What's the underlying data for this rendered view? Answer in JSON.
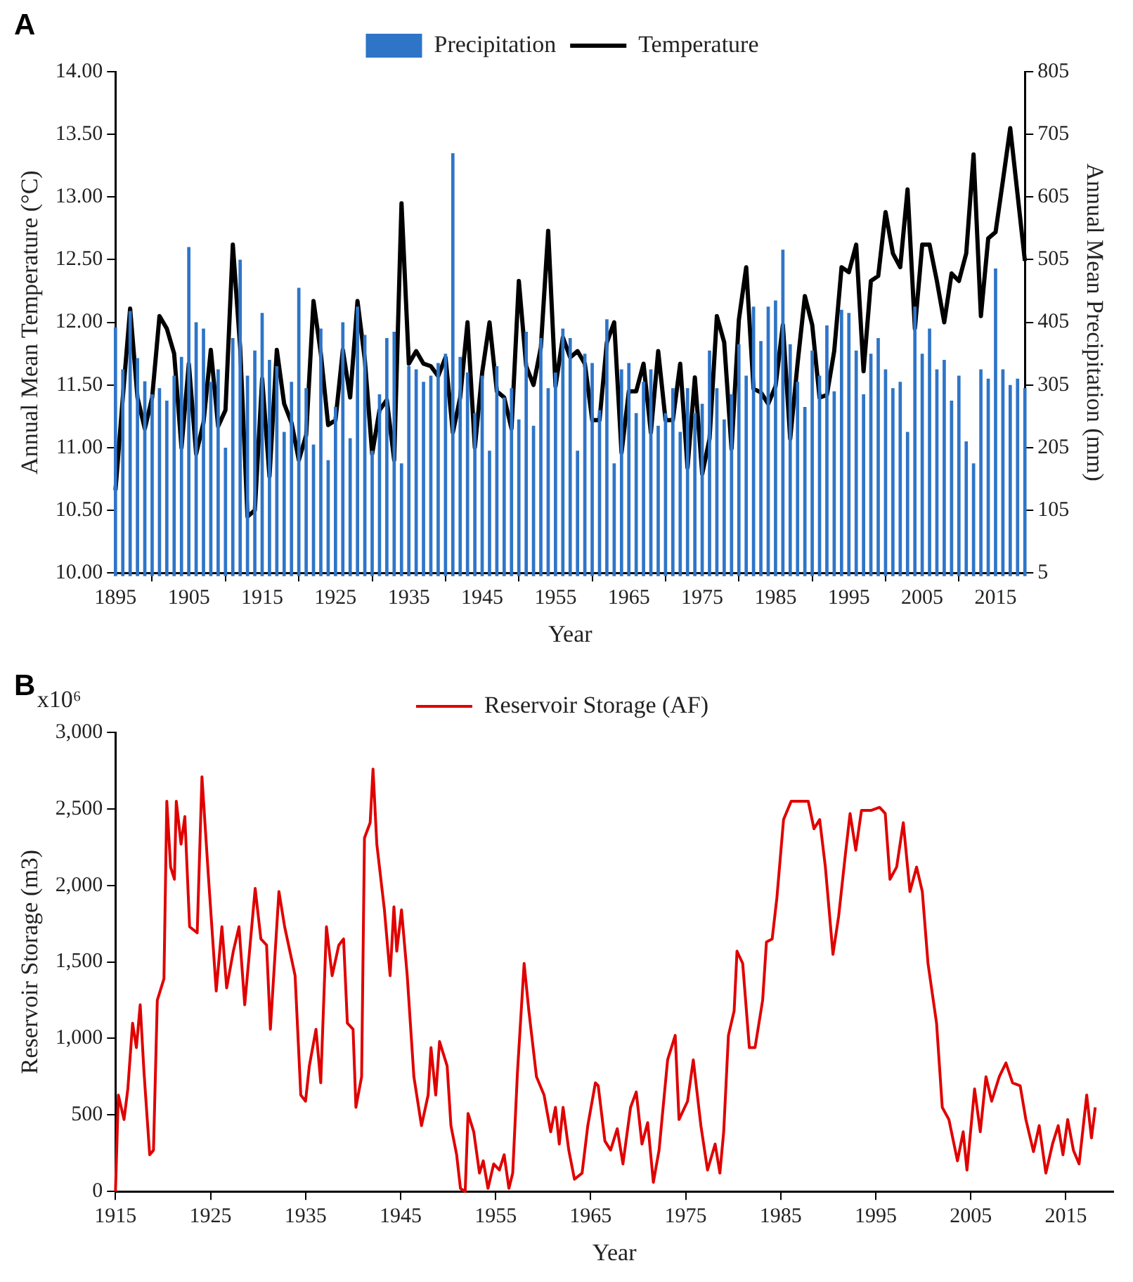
{
  "chart_data": [
    {
      "type": "bar",
      "annotations": [
        "A"
      ],
      "xlabel": "Year",
      "ylabel": "Annual Mean Temperature (°C)",
      "y2label": "Annual Mean Precipitation (mm)",
      "x": [
        1895,
        1896,
        1897,
        1898,
        1899,
        1900,
        1901,
        1902,
        1903,
        1904,
        1905,
        1906,
        1907,
        1908,
        1909,
        1910,
        1911,
        1912,
        1913,
        1914,
        1915,
        1916,
        1917,
        1918,
        1919,
        1920,
        1921,
        1922,
        1923,
        1924,
        1925,
        1926,
        1927,
        1928,
        1929,
        1930,
        1931,
        1932,
        1933,
        1934,
        1935,
        1936,
        1937,
        1938,
        1939,
        1940,
        1941,
        1942,
        1943,
        1944,
        1945,
        1946,
        1947,
        1948,
        1949,
        1950,
        1951,
        1952,
        1953,
        1954,
        1955,
        1956,
        1957,
        1958,
        1959,
        1960,
        1961,
        1962,
        1963,
        1964,
        1965,
        1966,
        1967,
        1968,
        1969,
        1970,
        1971,
        1972,
        1973,
        1974,
        1975,
        1976,
        1977,
        1978,
        1979,
        1980,
        1981,
        1982,
        1983,
        1984,
        1985,
        1986,
        1987,
        1988,
        1989,
        1990,
        1991,
        1992,
        1993,
        1994,
        1995,
        1996,
        1997,
        1998,
        1999,
        2000,
        2001,
        2002,
        2003,
        2004,
        2005,
        2006,
        2007,
        2008,
        2009,
        2010,
        2011,
        2012,
        2013,
        2014,
        2015,
        2016,
        2017,
        2018,
        2019
      ],
      "series": [
        {
          "name": "Precipitation",
          "type": "bar",
          "axis": "y2",
          "color": "#2e75c8",
          "values": [
            397,
            330,
            423,
            348,
            311,
            290,
            300,
            280,
            320,
            350,
            525,
            405,
            395,
            310,
            330,
            205,
            380,
            505,
            320,
            360,
            420,
            345,
            335,
            230,
            310,
            460,
            300,
            210,
            395,
            185,
            270,
            405,
            220,
            430,
            385,
            200,
            290,
            380,
            390,
            180,
            335,
            330,
            310,
            320,
            340,
            355,
            675,
            350,
            325,
            260,
            320,
            200,
            335,
            285,
            300,
            250,
            390,
            240,
            380,
            300,
            325,
            395,
            380,
            200,
            355,
            340,
            265,
            410,
            180,
            330,
            340,
            260,
            310,
            330,
            240,
            260,
            300,
            230,
            300,
            260,
            275,
            360,
            300,
            250,
            290,
            370,
            320,
            430,
            375,
            430,
            440,
            521,
            370,
            310,
            270,
            360,
            320,
            400,
            295,
            425,
            420,
            360,
            290,
            355,
            380,
            330,
            300,
            310,
            230,
            430,
            355,
            395,
            330,
            345,
            280,
            320,
            215,
            180,
            330,
            315,
            491,
            330,
            305,
            315,
            300
          ]
        },
        {
          "name": "Temperature",
          "type": "line",
          "axis": "y",
          "color": "#000000",
          "values": [
            10.66,
            11.4,
            12.11,
            11.4,
            11.15,
            11.4,
            12.05,
            11.95,
            11.75,
            11.0,
            11.67,
            10.95,
            11.2,
            11.78,
            11.17,
            11.3,
            12.62,
            11.8,
            10.45,
            10.5,
            11.55,
            10.77,
            11.78,
            11.35,
            11.2,
            10.9,
            11.1,
            12.17,
            11.75,
            11.18,
            11.22,
            11.78,
            11.4,
            12.17,
            11.7,
            10.95,
            11.3,
            11.38,
            10.9,
            12.95,
            11.67,
            11.77,
            11.67,
            11.65,
            11.57,
            11.72,
            11.12,
            11.4,
            12.0,
            11.0,
            11.6,
            12.0,
            11.45,
            11.4,
            11.15,
            12.33,
            11.65,
            11.5,
            11.8,
            12.73,
            11.49,
            11.88,
            11.72,
            11.77,
            11.67,
            11.22,
            11.22,
            11.84,
            12.0,
            10.96,
            11.45,
            11.45,
            11.67,
            11.12,
            11.77,
            11.22,
            11.22,
            11.67,
            10.84,
            11.56,
            10.79,
            11.07,
            12.05,
            11.84,
            10.99,
            12.02,
            12.44,
            11.47,
            11.44,
            11.35,
            11.49,
            11.98,
            11.07,
            11.67,
            12.21,
            11.98,
            11.4,
            11.42,
            11.77,
            12.44,
            12.4,
            12.62,
            11.61,
            12.33,
            12.37,
            12.88,
            12.55,
            12.44,
            13.06,
            11.95,
            12.62,
            12.62,
            12.33,
            12.0,
            12.39,
            12.33,
            12.55,
            13.34,
            12.05,
            12.67,
            12.72,
            13.13,
            13.55,
            13.02,
            12.49
          ]
        }
      ],
      "xlim": [
        1895,
        2019
      ],
      "xticks": [
        1895,
        1905,
        1915,
        1925,
        1935,
        1945,
        1955,
        1965,
        1975,
        1985,
        1995,
        2005,
        2015
      ],
      "ylim": [
        10,
        14
      ],
      "yticks": [
        {
          "value": 10,
          "label": "10.00"
        },
        {
          "value": 10.5,
          "label": "10.50"
        },
        {
          "value": 11,
          "label": "11.00"
        },
        {
          "value": 11.5,
          "label": "11.50"
        },
        {
          "value": 12,
          "label": "12.00"
        },
        {
          "value": 12.5,
          "label": "12.50"
        },
        {
          "value": 13,
          "label": "13.00"
        },
        {
          "value": 13.5,
          "label": "13.50"
        },
        {
          "value": 14,
          "label": "14.00"
        }
      ],
      "y2lim": [
        5,
        805
      ],
      "y2ticks": [
        5,
        105,
        205,
        305,
        405,
        505,
        605,
        705,
        805
      ],
      "grid": false,
      "legend": "top",
      "marker": "none"
    },
    {
      "type": "line",
      "annotations": [
        "B",
        "x10⁶"
      ],
      "xlabel": "Year",
      "ylabel": "Reservoir Storage (m3)",
      "series": [
        {
          "name": "Reservoir Storage (AF)",
          "color": "#e00000",
          "x": [
            1915.0,
            1915.3,
            1915.9,
            1916.3,
            1916.8,
            1917.2,
            1917.6,
            1918.0,
            1918.6,
            1919.0,
            1919.4,
            1920.1,
            1920.4,
            1920.8,
            1921.2,
            1921.4,
            1921.9,
            1922.3,
            1922.8,
            1923.6,
            1924.1,
            1924.8,
            1925.6,
            1926.2,
            1926.7,
            1927.4,
            1928.0,
            1928.6,
            1929.7,
            1930.3,
            1930.9,
            1931.3,
            1932.2,
            1932.8,
            1933.9,
            1934.5,
            1935.0,
            1935.4,
            1936.1,
            1936.6,
            1937.2,
            1937.8,
            1938.5,
            1939.0,
            1939.4,
            1940.0,
            1940.3,
            1940.9,
            1941.2,
            1941.8,
            1942.1,
            1942.5,
            1943.3,
            1943.9,
            1944.3,
            1944.6,
            1945.1,
            1945.7,
            1946.4,
            1947.2,
            1947.9,
            1948.2,
            1948.7,
            1949.1,
            1949.9,
            1950.3,
            1950.9,
            1951.3,
            1951.8,
            1952.1,
            1952.7,
            1953.3,
            1953.7,
            1954.2,
            1954.8,
            1955.4,
            1955.9,
            1956.4,
            1956.8,
            1957.3,
            1958.0,
            1958.5,
            1959.3,
            1960.1,
            1960.8,
            1961.3,
            1961.7,
            1962.1,
            1962.7,
            1963.3,
            1964.1,
            1964.7,
            1965.5,
            1965.8,
            1966.5,
            1967.1,
            1967.8,
            1968.4,
            1969.2,
            1969.8,
            1970.4,
            1971.0,
            1971.6,
            1972.2,
            1973.1,
            1973.9,
            1974.3,
            1975.2,
            1975.8,
            1976.6,
            1977.3,
            1978.1,
            1978.6,
            1979.0,
            1979.5,
            1980.1,
            1980.4,
            1981.0,
            1981.7,
            1982.3,
            1983.1,
            1983.5,
            1984.1,
            1984.6,
            1985.3,
            1986.1,
            1987.0,
            1987.9,
            1988.5,
            1989.1,
            1989.7,
            1990.5,
            1991.1,
            1991.8,
            1992.3,
            1992.9,
            1993.5,
            1994.5,
            1995.4,
            1996.0,
            1996.5,
            1997.2,
            1997.9,
            1998.6,
            1999.3,
            1999.9,
            2000.5,
            2001.4,
            2002.0,
            2002.7,
            2003.6,
            2004.2,
            2004.6,
            2005.4,
            2006.0,
            2006.6,
            2007.2,
            2008.0,
            2008.7,
            2009.4,
            2010.2,
            2010.8,
            2011.6,
            2012.2,
            2012.9,
            2013.6,
            2014.2,
            2014.7,
            2015.2,
            2015.8,
            2016.4,
            2017.2,
            2017.7,
            2018.1
          ],
          "values": [
            0,
            630,
            470,
            670,
            1100,
            940,
            1220,
            780,
            240,
            270,
            1250,
            1390,
            2550,
            2120,
            2040,
            2550,
            2270,
            2450,
            1730,
            1690,
            2710,
            2040,
            1310,
            1730,
            1330,
            1570,
            1730,
            1220,
            1980,
            1650,
            1610,
            1060,
            1960,
            1730,
            1410,
            630,
            590,
            820,
            1060,
            710,
            1730,
            1410,
            1610,
            1650,
            1100,
            1060,
            550,
            750,
            2310,
            2410,
            2760,
            2270,
            1840,
            1410,
            1860,
            1570,
            1840,
            1410,
            750,
            430,
            630,
            940,
            630,
            980,
            820,
            430,
            240,
            20,
            0,
            510,
            390,
            120,
            200,
            20,
            180,
            140,
            240,
            20,
            120,
            780,
            1490,
            1180,
            750,
            630,
            390,
            550,
            310,
            550,
            270,
            80,
            120,
            430,
            710,
            690,
            330,
            270,
            410,
            180,
            550,
            650,
            310,
            450,
            60,
            270,
            860,
            1020,
            470,
            590,
            860,
            430,
            140,
            310,
            120,
            390,
            1020,
            1180,
            1570,
            1490,
            940,
            940,
            1250,
            1630,
            1650,
            1920,
            2430,
            2550,
            2550,
            2550,
            2370,
            2430,
            2120,
            1550,
            1800,
            2200,
            2470,
            2230,
            2490,
            2490,
            2510,
            2470,
            2040,
            2120,
            2410,
            1960,
            2120,
            1960,
            1490,
            1100,
            550,
            470,
            200,
            390,
            140,
            670,
            390,
            750,
            590,
            750,
            840,
            710,
            690,
            470,
            260,
            430,
            120,
            310,
            430,
            240,
            470,
            270,
            180,
            630,
            350,
            550
          ]
        }
      ],
      "xlim": [
        1915,
        2020
      ],
      "xticks": [
        1915,
        1925,
        1935,
        1945,
        1955,
        1965,
        1975,
        1985,
        1995,
        2005,
        2015
      ],
      "ylim": [
        0,
        3000
      ],
      "yticks": [
        0,
        500,
        {
          "value": 1000,
          "label": "1,000"
        },
        {
          "value": 1500,
          "label": "1,500"
        },
        {
          "value": 2000,
          "label": "2,000"
        },
        {
          "value": 2500,
          "label": "2,500"
        },
        {
          "value": 3000,
          "label": "3,000"
        }
      ],
      "grid": false,
      "legend": "top",
      "marker": "none"
    }
  ]
}
